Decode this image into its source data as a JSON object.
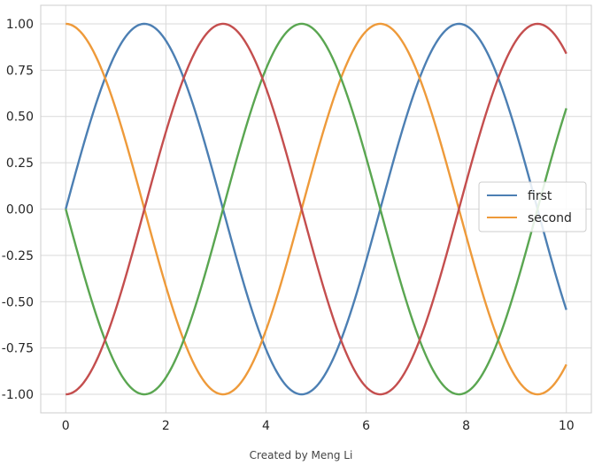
{
  "chart_data": {
    "type": "line",
    "x_range": [
      0,
      10
    ],
    "xlim": [
      -0.5,
      10.5
    ],
    "ylim": [
      -1.1,
      1.1
    ],
    "xticks": [
      0,
      2,
      4,
      6,
      8,
      10
    ],
    "xtick_labels": [
      "0",
      "2",
      "4",
      "6",
      "8",
      "10"
    ],
    "yticks": [
      1.0,
      0.75,
      0.5,
      0.25,
      0.0,
      -0.25,
      -0.5,
      -0.75,
      -1.0
    ],
    "ytick_labels": [
      "1.00",
      "0.75",
      "0.50",
      "0.25",
      "0.00",
      "-0.25",
      "-0.50",
      "-0.75",
      "-1.00"
    ],
    "grid": true,
    "legend_position": "center-right",
    "series": [
      {
        "name": "first",
        "function": "sin(x)",
        "color": "#4c7fb3"
      },
      {
        "name": "second",
        "function": "cos(x)",
        "color": "#ee9a3a"
      },
      {
        "function": "-sin(x)",
        "color": "#5aa651"
      },
      {
        "function": "-cos(x)",
        "color": "#c44e4e"
      }
    ]
  },
  "caption": "Created by Meng Li"
}
